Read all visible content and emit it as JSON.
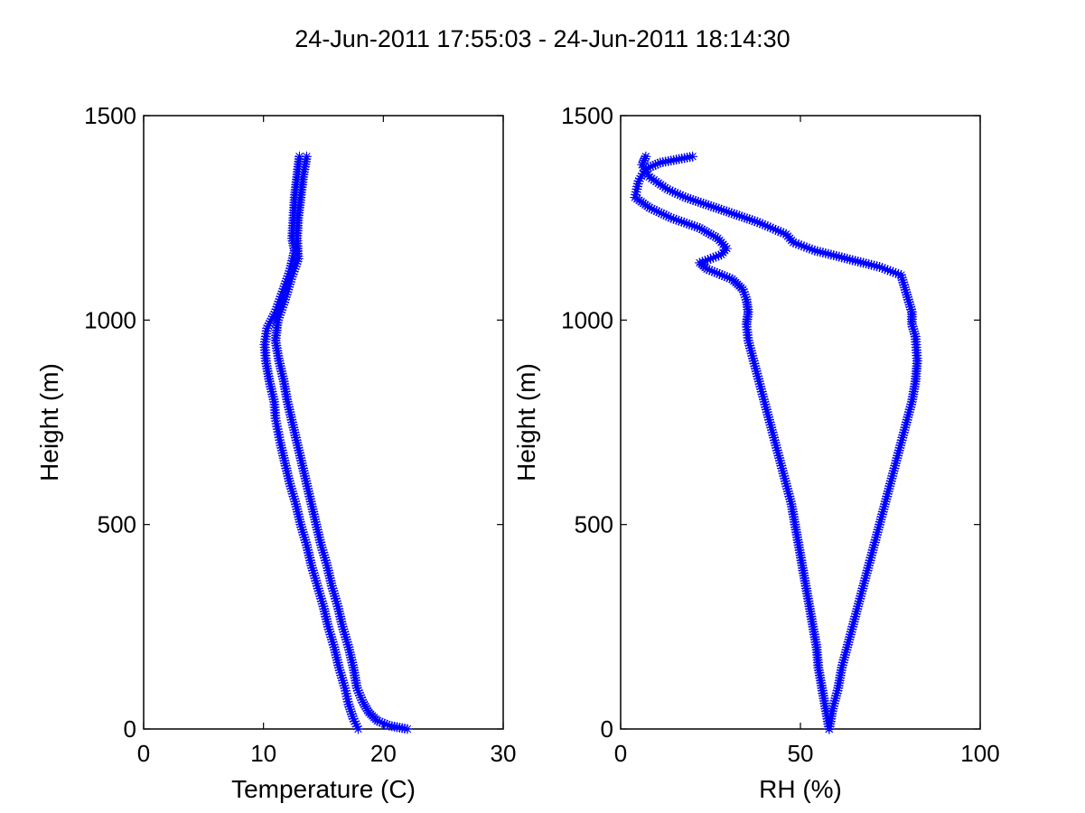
{
  "figure": {
    "title": "24-Jun-2011 17:55:03 - 24-Jun-2011 18:14:30"
  },
  "chart_data": [
    {
      "type": "scatter",
      "marker": "asterisk",
      "color": "#0000ff",
      "xlabel": "Temperature (C)",
      "ylabel": "Height (m)",
      "xlim": [
        0,
        30
      ],
      "ylim": [
        0,
        1500
      ],
      "xticks": [
        0,
        10,
        20,
        30
      ],
      "yticks": [
        0,
        500,
        1000,
        1500
      ],
      "grid": false,
      "series": [
        {
          "points": [
            [
              22.0,
              0
            ],
            [
              20.5,
              8
            ],
            [
              19.5,
              20
            ],
            [
              18.8,
              40
            ],
            [
              18.3,
              65
            ],
            [
              17.8,
              100
            ],
            [
              17.5,
              150
            ],
            [
              17.1,
              200
            ],
            [
              16.6,
              250
            ],
            [
              16.2,
              300
            ],
            [
              15.7,
              350
            ],
            [
              15.3,
              400
            ],
            [
              14.8,
              450
            ],
            [
              14.4,
              500
            ],
            [
              14.0,
              550
            ],
            [
              13.6,
              600
            ],
            [
              13.2,
              650
            ],
            [
              12.8,
              700
            ],
            [
              12.4,
              750
            ],
            [
              12.0,
              800
            ],
            [
              11.7,
              850
            ],
            [
              11.3,
              900
            ],
            [
              11.0,
              950
            ],
            [
              11.2,
              1000
            ],
            [
              11.8,
              1050
            ],
            [
              12.3,
              1100
            ],
            [
              12.9,
              1150
            ],
            [
              12.8,
              1200
            ],
            [
              12.9,
              1250
            ],
            [
              13.1,
              1300
            ],
            [
              13.3,
              1350
            ],
            [
              13.6,
              1400
            ]
          ]
        },
        {
          "points": [
            [
              13.0,
              1400
            ],
            [
              12.8,
              1350
            ],
            [
              12.6,
              1300
            ],
            [
              12.5,
              1250
            ],
            [
              12.4,
              1200
            ],
            [
              12.6,
              1170
            ],
            [
              12.2,
              1120
            ],
            [
              11.6,
              1070
            ],
            [
              11.0,
              1020
            ],
            [
              10.3,
              980
            ],
            [
              10.1,
              940
            ],
            [
              10.2,
              900
            ],
            [
              10.5,
              850
            ],
            [
              10.9,
              800
            ],
            [
              11.0,
              760
            ],
            [
              11.4,
              700
            ],
            [
              11.8,
              650
            ],
            [
              12.2,
              600
            ],
            [
              12.7,
              550
            ],
            [
              13.1,
              500
            ],
            [
              13.6,
              450
            ],
            [
              14.0,
              400
            ],
            [
              14.5,
              350
            ],
            [
              15.0,
              300
            ],
            [
              15.4,
              250
            ],
            [
              15.9,
              200
            ],
            [
              16.3,
              150
            ],
            [
              16.8,
              100
            ],
            [
              17.1,
              60
            ],
            [
              17.5,
              25
            ],
            [
              17.9,
              0
            ]
          ]
        }
      ]
    },
    {
      "type": "scatter",
      "marker": "asterisk",
      "color": "#0000ff",
      "xlabel": "RH (%)",
      "ylabel": "Height (m)",
      "xlim": [
        0,
        100
      ],
      "ylim": [
        0,
        1500
      ],
      "xticks": [
        0,
        50,
        100
      ],
      "yticks": [
        0,
        500,
        1000,
        1500
      ],
      "grid": false,
      "series": [
        {
          "points": [
            [
              58,
              0
            ],
            [
              57,
              50
            ],
            [
              56,
              100
            ],
            [
              55,
              150
            ],
            [
              54.5,
              200
            ],
            [
              53.5,
              250
            ],
            [
              52.5,
              300
            ],
            [
              51.5,
              350
            ],
            [
              50.5,
              400
            ],
            [
              49.5,
              450
            ],
            [
              48.5,
              500
            ],
            [
              47.5,
              550
            ],
            [
              46,
              600
            ],
            [
              44.5,
              650
            ],
            [
              43,
              700
            ],
            [
              41.5,
              750
            ],
            [
              40,
              800
            ],
            [
              38.5,
              850
            ],
            [
              37,
              900
            ],
            [
              35.5,
              950
            ],
            [
              35,
              990
            ],
            [
              35.5,
              1020
            ],
            [
              35,
              1050
            ],
            [
              34,
              1075
            ],
            [
              31,
              1100
            ],
            [
              24,
              1125
            ],
            [
              22,
              1140
            ],
            [
              28,
              1160
            ],
            [
              29.5,
              1175
            ],
            [
              27,
              1200
            ],
            [
              22,
              1225
            ],
            [
              14,
              1250
            ],
            [
              8,
              1275
            ],
            [
              4,
              1300
            ],
            [
              5,
              1340
            ],
            [
              7,
              1370
            ],
            [
              11,
              1385
            ],
            [
              20,
              1400
            ]
          ]
        },
        {
          "points": [
            [
              7,
              1400
            ],
            [
              6,
              1380
            ],
            [
              8,
              1350
            ],
            [
              13,
              1320
            ],
            [
              18,
              1300
            ],
            [
              28,
              1270
            ],
            [
              38,
              1240
            ],
            [
              46,
              1210
            ],
            [
              48,
              1190
            ],
            [
              54,
              1170
            ],
            [
              63,
              1150
            ],
            [
              72,
              1130
            ],
            [
              78,
              1110
            ],
            [
              79,
              1080
            ],
            [
              80,
              1050
            ],
            [
              81,
              1020
            ],
            [
              81,
              990
            ],
            [
              82,
              960
            ],
            [
              82.5,
              900
            ],
            [
              82,
              850
            ],
            [
              81,
              800
            ],
            [
              79.5,
              750
            ],
            [
              78,
              700
            ],
            [
              76.5,
              650
            ],
            [
              75,
              600
            ],
            [
              73.5,
              550
            ],
            [
              72,
              500
            ],
            [
              70.5,
              450
            ],
            [
              69,
              400
            ],
            [
              67.5,
              350
            ],
            [
              66,
              300
            ],
            [
              64.5,
              250
            ],
            [
              63,
              200
            ],
            [
              61.5,
              150
            ],
            [
              60.5,
              100
            ],
            [
              59,
              50
            ],
            [
              58,
              0
            ]
          ]
        }
      ]
    }
  ]
}
